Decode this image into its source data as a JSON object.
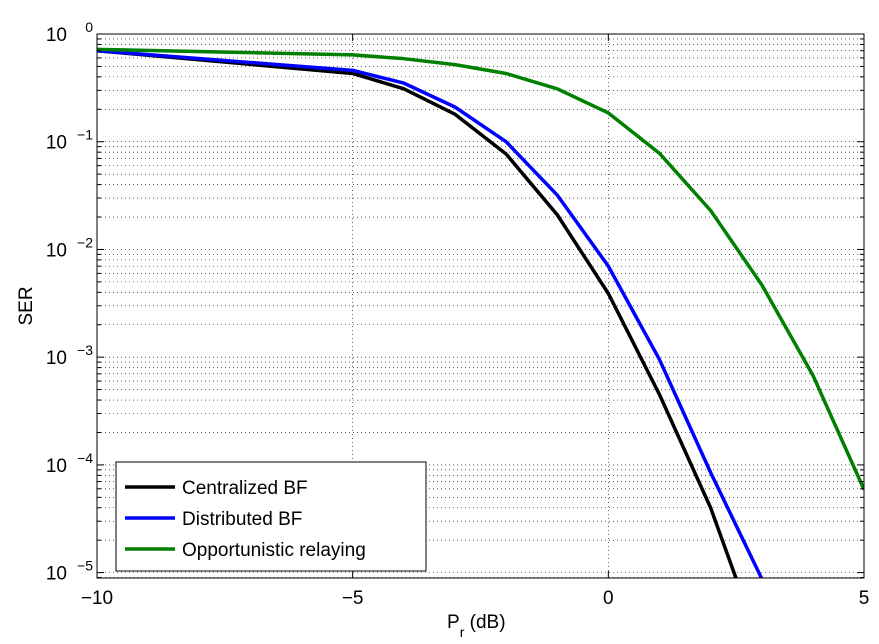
{
  "chart_data": {
    "type": "line",
    "xlabel_base": "P",
    "xlabel_sub": "r",
    "xlabel_rest": " (dB)",
    "ylabel": "SER",
    "xlim": [
      -10,
      5
    ],
    "ylim_log10": [
      -5.05,
      0
    ],
    "yscale": "log",
    "grid": true,
    "legend_position": "bottom-left",
    "x_ticks": [
      {
        "value": -10,
        "label": "−10"
      },
      {
        "value": -5,
        "label": "−5"
      },
      {
        "value": 0,
        "label": "0"
      },
      {
        "value": 5,
        "label": "5"
      }
    ],
    "y_ticks": [
      {
        "exp": 0,
        "base": "10",
        "sup": "0"
      },
      {
        "exp": -1,
        "base": "10",
        "sup": "−1"
      },
      {
        "exp": -2,
        "base": "10",
        "sup": "−2"
      },
      {
        "exp": -3,
        "base": "10",
        "sup": "−3"
      },
      {
        "exp": -4,
        "base": "10",
        "sup": "−4"
      },
      {
        "exp": -5,
        "base": "10",
        "sup": "−5"
      }
    ],
    "series": [
      {
        "name": "Centralized BF",
        "color": "#000000",
        "x": [
          -10,
          -5,
          -4,
          -3,
          -2,
          -1,
          0,
          1,
          2,
          2.5
        ],
        "y": [
          0.7,
          0.43,
          0.31,
          0.18,
          0.077,
          0.021,
          0.0039,
          0.00045,
          4e-05,
          8.8e-06
        ]
      },
      {
        "name": "Distributed BF",
        "color": "#0000ff",
        "x": [
          -10,
          -5,
          -4,
          -3,
          -2,
          -1,
          0,
          1,
          2,
          3
        ],
        "y": [
          0.7,
          0.46,
          0.35,
          0.21,
          0.1,
          0.032,
          0.007,
          0.00095,
          8.5e-05,
          8.8e-06
        ]
      },
      {
        "name": "Opportunistic relaying",
        "color": "#008000",
        "x": [
          -10,
          -5,
          -4,
          -3,
          -2,
          -1,
          0,
          1,
          2,
          3,
          4,
          5
        ],
        "y": [
          0.72,
          0.64,
          0.59,
          0.52,
          0.43,
          0.31,
          0.185,
          0.078,
          0.023,
          0.0047,
          0.00068,
          5.9e-05
        ]
      }
    ]
  }
}
